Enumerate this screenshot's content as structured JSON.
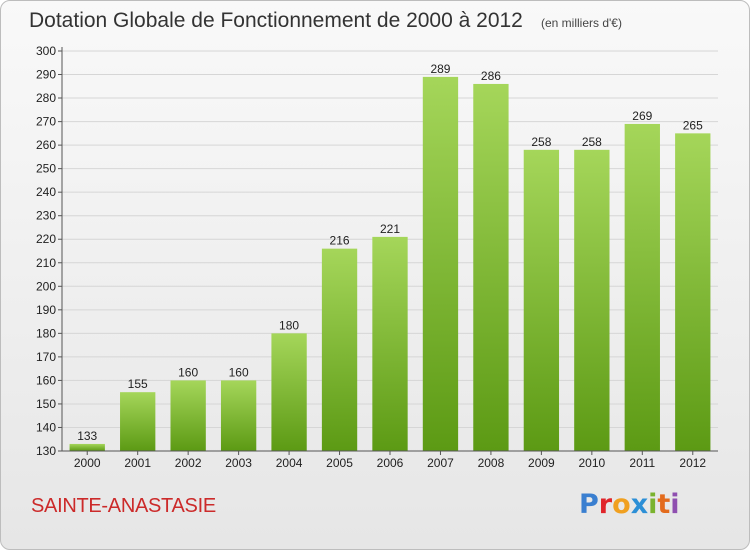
{
  "title": "Dotation Globale de Fonctionnement de 2000 à 2012",
  "subtitle": "(en milliers d'€)",
  "commune": "SAINTE-ANASTASIE",
  "logo": {
    "letters": [
      "P",
      "r",
      "o",
      "x",
      "i",
      "t",
      "i"
    ],
    "colors": [
      "#3a7fd0",
      "#e0252a",
      "#f0a020",
      "#2c8fd6",
      "#7ab32e",
      "#e36b1d",
      "#8f4fb0"
    ]
  },
  "colors": {
    "bar_light": "#a5d65a",
    "bar_dark": "#5c9a14",
    "gridline": "#d6d6d6",
    "axis": "#555555"
  },
  "chart_data": {
    "type": "bar",
    "categories": [
      "2000",
      "2001",
      "2002",
      "2003",
      "2004",
      "2005",
      "2006",
      "2007",
      "2008",
      "2009",
      "2010",
      "2011",
      "2012"
    ],
    "values": [
      133,
      155,
      160,
      160,
      180,
      216,
      221,
      289,
      286,
      258,
      258,
      269,
      265
    ],
    "value_labels": [
      "133",
      "155",
      "160",
      "160",
      "180",
      "216",
      "221",
      "289",
      "286",
      "258",
      "258",
      "269",
      "265"
    ],
    "yticks": [
      "130",
      "140",
      "150",
      "160",
      "170",
      "180",
      "190",
      "200",
      "210",
      "220",
      "230",
      "240",
      "250",
      "260",
      "270",
      "280",
      "290",
      "300"
    ],
    "ylim": [
      130,
      300
    ],
    "grid": true,
    "legend": "none"
  }
}
